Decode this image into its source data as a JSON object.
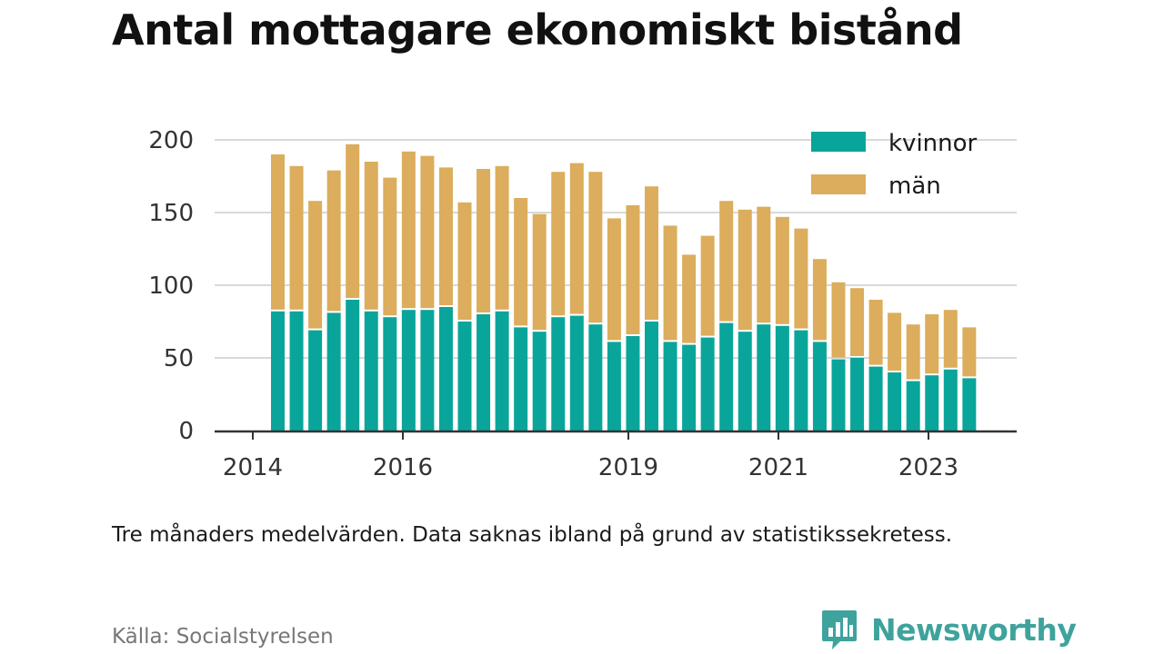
{
  "title": "Antal mottagare ekonomiskt bistånd",
  "caption": "Tre månaders medelvärden. Data saknas ibland på grund av statistikssekretess.",
  "source": "Källa: Socialstyrelsen",
  "brand": {
    "name": "Newsworthy",
    "icon": "newsworthy-chart-icon",
    "color": "#3ea39c"
  },
  "colors": {
    "kvinnor": "#0aa59a",
    "man": "#dbad5c",
    "grid": "#d9d9d9",
    "axis": "#333333"
  },
  "chart_data": {
    "type": "bar",
    "stacked": true,
    "ylim": [
      0,
      200
    ],
    "yticks": [
      "0",
      "50",
      "100",
      "150",
      "200"
    ],
    "xticks": [
      "2014",
      "2016",
      "2019",
      "2021",
      "2023"
    ],
    "grid": "horizontal",
    "legend_position": "top-right",
    "categories": [
      "2014-T2",
      "2014-T3",
      "2014-T4",
      "2015-T1",
      "2015-T2",
      "2015-T3",
      "2015-T4",
      "2016-T1",
      "2016-T2",
      "2016-T3",
      "2016-T4",
      "2017-T1",
      "2017-T2",
      "2017-T3",
      "2017-T4",
      "2018-T1",
      "2018-T2",
      "2018-T3",
      "2018-T4",
      "2019-T1",
      "2019-T2",
      "2019-T3",
      "2019-T4",
      "2020-T1",
      "2020-T2",
      "2020-T3",
      "2020-T4",
      "2021-T1",
      "2021-T2",
      "2021-T3",
      "2021-T4",
      "2022-T1",
      "2022-T2",
      "2022-T3",
      "2022-T4",
      "2023-T1",
      "2023-T2",
      "2023-T3"
    ],
    "series": [
      {
        "name": "kvinnor",
        "values": [
          82,
          82,
          69,
          81,
          90,
          82,
          78,
          83,
          83,
          85,
          75,
          80,
          82,
          71,
          68,
          78,
          79,
          73,
          61,
          65,
          75,
          61,
          59,
          64,
          74,
          68,
          73,
          72,
          69,
          61,
          49,
          50,
          44,
          40,
          34,
          38,
          42,
          36
        ]
      },
      {
        "name": "män",
        "values": [
          108,
          100,
          89,
          98,
          107,
          103,
          96,
          109,
          106,
          96,
          82,
          100,
          100,
          89,
          81,
          100,
          105,
          105,
          85,
          90,
          93,
          80,
          62,
          70,
          84,
          84,
          81,
          75,
          70,
          57,
          53,
          48,
          46,
          41,
          39,
          42,
          41,
          35
        ]
      }
    ]
  }
}
